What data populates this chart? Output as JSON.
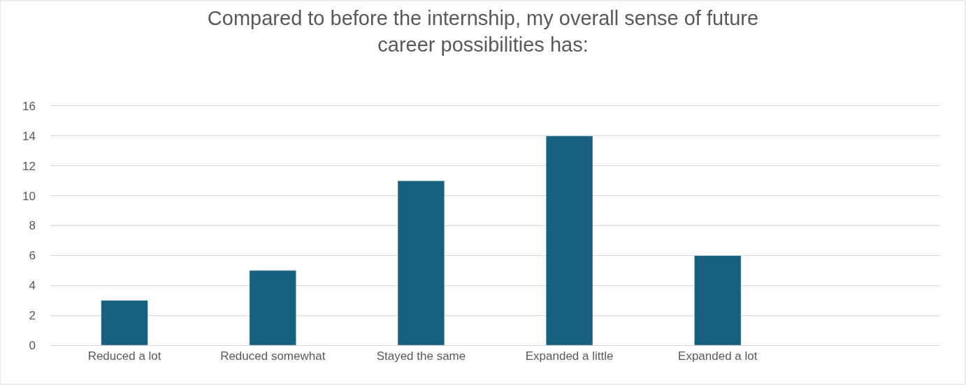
{
  "chart_data": {
    "type": "bar",
    "title": "Compared to before the internship, my overall sense of future\ncareer possibilities has:",
    "categories": [
      "Reduced a lot",
      "Reduced somewhat",
      "Stayed the same",
      "Expanded a little",
      "Expanded a lot",
      null
    ],
    "values": [
      3,
      5,
      11,
      14,
      6,
      null
    ],
    "color": "#17607f",
    "ylim": [
      0,
      16
    ],
    "yticks": [
      0,
      2,
      4,
      6,
      8,
      10,
      12,
      14,
      16
    ],
    "grid": "y"
  }
}
